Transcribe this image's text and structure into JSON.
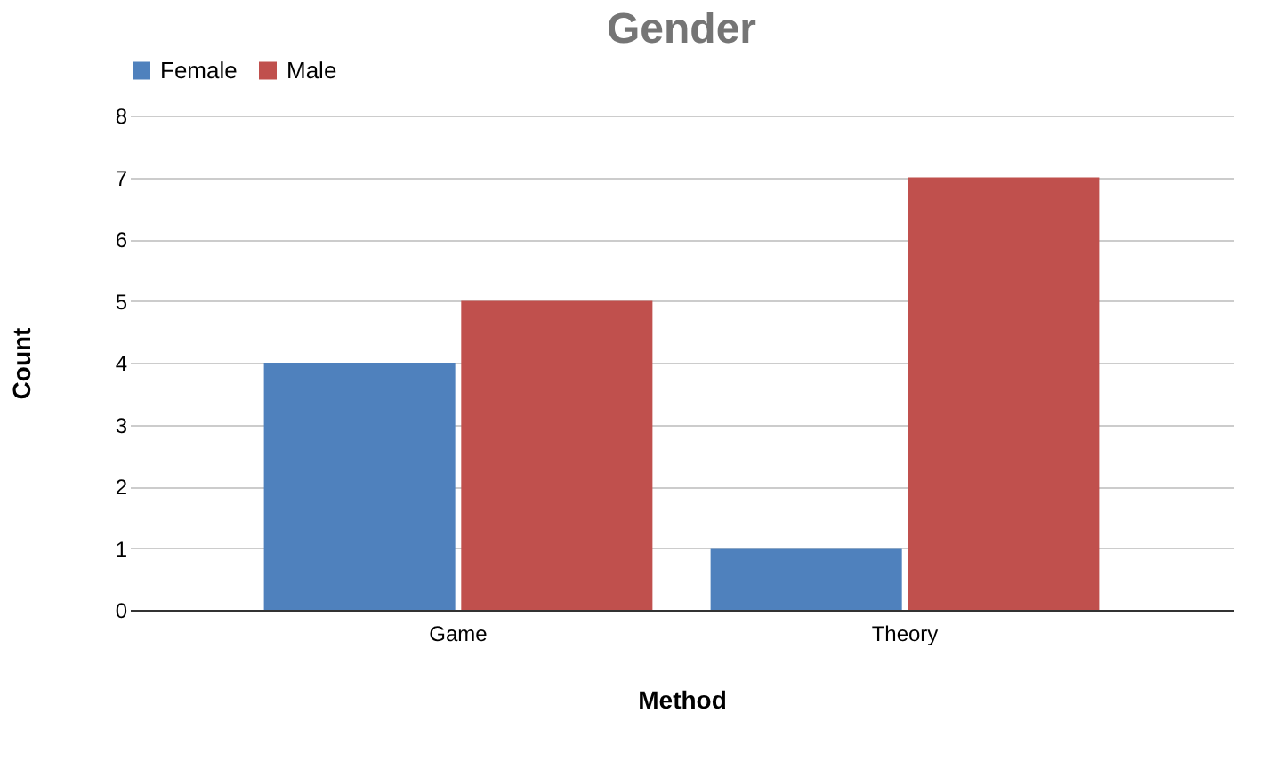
{
  "chart_data": {
    "type": "bar",
    "title": "Gender",
    "xlabel": "Method",
    "ylabel": "Count",
    "categories": [
      "Game",
      "Theory"
    ],
    "series": [
      {
        "name": "Female",
        "color": "#4f81bd",
        "values": [
          4,
          1
        ]
      },
      {
        "name": "Male",
        "color": "#c0504d",
        "values": [
          5,
          7
        ]
      }
    ],
    "ylim": [
      0,
      8
    ],
    "yticks": [
      0,
      1,
      2,
      3,
      4,
      5,
      6,
      7,
      8
    ],
    "grid": "y",
    "legend": "top"
  }
}
